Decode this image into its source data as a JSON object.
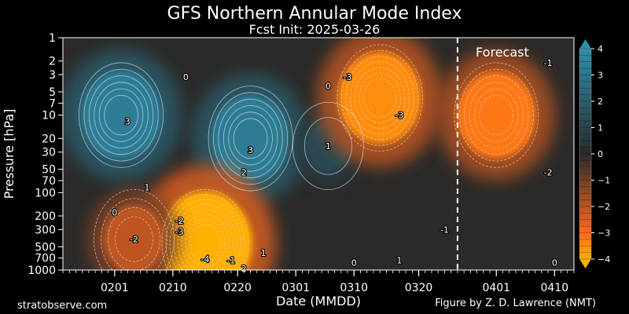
{
  "chart_data": {
    "type": "heatmap",
    "title": "GFS Northern Annular Mode Index",
    "subtitle": "Fcst Init: 2025-03-26",
    "xlabel": "Date (MMDD)",
    "ylabel": "Pressure [hPa]",
    "y_scale": "log",
    "y_inverted": true,
    "xlim": [
      "2025-01-24",
      "2025-04-13"
    ],
    "ylim": [
      1000,
      1
    ],
    "x_ticks": [
      "0201",
      "0210",
      "0220",
      "0301",
      "0310",
      "0320",
      "0401",
      "0410"
    ],
    "x_tick_dates": [
      "2025-02-01",
      "2025-02-10",
      "2025-02-20",
      "2025-03-01",
      "2025-03-10",
      "2025-03-20",
      "2025-04-01",
      "2025-04-10"
    ],
    "y_ticks": [
      1,
      2,
      3,
      5,
      7,
      10,
      20,
      30,
      50,
      70,
      100,
      200,
      300,
      500,
      700,
      1000
    ],
    "forecast_line_date": "2025-03-26",
    "forecast_label": "Forecast",
    "colorbar": {
      "ticks": [
        4,
        3,
        2,
        1,
        0,
        -1,
        -2,
        -3,
        -4
      ],
      "tick_labels": [
        "4",
        "3",
        "2",
        "1",
        "0",
        "−1",
        "−2",
        "−3",
        "−4"
      ],
      "range": [
        -4,
        4
      ],
      "colors": {
        "positive_max": "#2e8fae",
        "neutral": "#2a2a2a",
        "negative_max": "#ff6a1e",
        "extreme_negative": "#ffb000"
      }
    },
    "features": [
      {
        "sign": "positive",
        "date": "2025-02-02",
        "pressure_hPa": 10,
        "value": 3.3
      },
      {
        "sign": "positive",
        "date": "2025-02-22",
        "pressure_hPa": 20,
        "value": 3.2
      },
      {
        "sign": "positive",
        "date": "2025-03-06",
        "pressure_hPa": 25,
        "value": 1.2
      },
      {
        "sign": "negative",
        "date": "2025-02-15",
        "pressure_hPa": 450,
        "value": -4.2
      },
      {
        "sign": "negative",
        "date": "2025-02-04",
        "pressure_hPa": 400,
        "value": -2.1
      },
      {
        "sign": "negative",
        "date": "2025-03-14",
        "pressure_hPa": 6,
        "value": -3.5
      },
      {
        "sign": "negative",
        "date": "2025-04-01",
        "pressure_hPa": 10,
        "value": -3.2
      }
    ],
    "contour_labels": [
      {
        "text": "3",
        "date": "2025-02-03",
        "pressure_hPa": 12
      },
      {
        "text": "3",
        "date": "2025-02-22",
        "pressure_hPa": 28
      },
      {
        "text": "2",
        "date": "2025-02-21",
        "pressure_hPa": 55
      },
      {
        "text": "1",
        "date": "2025-03-06",
        "pressure_hPa": 25
      },
      {
        "text": "1",
        "date": "2025-02-06",
        "pressure_hPa": 85
      },
      {
        "text": "0",
        "date": "2025-02-12",
        "pressure_hPa": 3.2
      },
      {
        "text": "0",
        "date": "2025-03-06",
        "pressure_hPa": 4.2
      },
      {
        "text": "0",
        "date": "2025-02-01",
        "pressure_hPa": 180
      },
      {
        "text": "-3",
        "date": "2025-03-09",
        "pressure_hPa": 3.2
      },
      {
        "text": "-3",
        "date": "2025-03-17",
        "pressure_hPa": 10
      },
      {
        "text": "-1",
        "date": "2025-04-09",
        "pressure_hPa": 2.1
      },
      {
        "text": "-2",
        "date": "2025-04-09",
        "pressure_hPa": 55
      },
      {
        "text": "-2",
        "date": "2025-02-04",
        "pressure_hPa": 400
      },
      {
        "text": "-2",
        "date": "2025-02-11",
        "pressure_hPa": 230
      },
      {
        "text": "-3",
        "date": "2025-02-11",
        "pressure_hPa": 320
      },
      {
        "text": "-4",
        "date": "2025-02-15",
        "pressure_hPa": 720
      },
      {
        "text": "-1",
        "date": "2025-02-19",
        "pressure_hPa": 750
      },
      {
        "text": "1",
        "date": "2025-02-24",
        "pressure_hPa": 600
      },
      {
        "text": "2",
        "date": "2025-02-21",
        "pressure_hPa": 950
      },
      {
        "text": "0",
        "date": "2025-03-10",
        "pressure_hPa": 800
      },
      {
        "text": "1",
        "date": "2025-03-17",
        "pressure_hPa": 750
      },
      {
        "text": "-1",
        "date": "2025-03-24",
        "pressure_hPa": 300
      },
      {
        "text": "0",
        "date": "2025-04-10",
        "pressure_hPa": 800
      }
    ]
  },
  "footer": {
    "left": "stratobserve.com",
    "right": "Figure by Z. D. Lawrence (NMT)"
  }
}
